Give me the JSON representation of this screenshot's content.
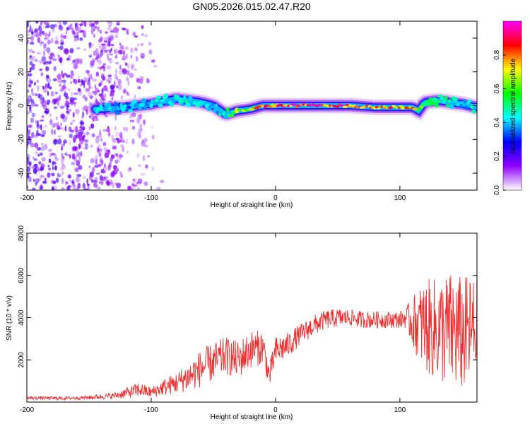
{
  "chart_data": [
    {
      "type": "heatmap",
      "title": "GN05.2026.015.02.47.R20",
      "xlabel": "Height of straight line (km)",
      "ylabel": "Frequency (Hz)",
      "xlim": [
        -200,
        162
      ],
      "ylim": [
        -50,
        50
      ],
      "xticks": [
        "-200",
        "-100",
        "0",
        "100"
      ],
      "yticks": [
        "40",
        "20",
        "0",
        "-20",
        "-40"
      ],
      "colorbar": {
        "label": "Normalized spectral amplitude",
        "range": [
          0,
          1
        ],
        "ticks": [
          "0.0",
          "0.2",
          "0.4",
          "0.6",
          "0.8"
        ],
        "colors": [
          "#ffffff",
          "#8f00ff",
          "#0000ff",
          "#00ffff",
          "#00ff00",
          "#ffff00",
          "#ff0000",
          "#ff00ff"
        ]
      },
      "ridge": {
        "x": [
          -140,
          -120,
          -100,
          -80,
          -70,
          -60,
          -50,
          -40,
          -35,
          -30,
          -20,
          -10,
          0,
          20,
          40,
          60,
          80,
          100,
          110,
          115,
          120,
          130,
          140,
          150,
          162
        ],
        "freq": [
          -2,
          -1,
          1,
          4,
          3,
          2,
          0,
          -5,
          -4,
          -3,
          -2,
          0,
          0,
          0,
          0,
          0,
          -1,
          -1,
          -1,
          -3,
          2,
          3,
          2,
          1,
          -1
        ],
        "amplitude": [
          0.45,
          0.4,
          0.45,
          0.45,
          0.5,
          0.45,
          0.45,
          0.5,
          0.6,
          0.7,
          0.75,
          0.85,
          0.9,
          0.95,
          0.95,
          0.9,
          0.85,
          0.85,
          0.8,
          0.7,
          0.6,
          0.5,
          0.5,
          0.45,
          0.45
        ]
      },
      "noise_region": {
        "x_start": -200,
        "x_end": -90,
        "amplitude": 0.1
      }
    },
    {
      "type": "line",
      "xlabel": "Height of straight line (km)",
      "ylabel": "SNR (10 * v/v)",
      "xlim": [
        -200,
        162
      ],
      "ylim": [
        0,
        8000
      ],
      "xticks": [
        "-200",
        "-100",
        "0",
        "100"
      ],
      "yticks": [
        "8000",
        "6000",
        "4000",
        "2000"
      ],
      "color": "#f03030",
      "series": [
        {
          "name": "SNR",
          "x": [
            -200,
            -170,
            -150,
            -130,
            -115,
            -110,
            -100,
            -90,
            -80,
            -70,
            -60,
            -50,
            -40,
            -30,
            -20,
            -10,
            -5,
            0,
            10,
            20,
            30,
            40,
            50,
            60,
            70,
            80,
            90,
            100,
            105,
            110,
            120,
            130,
            140,
            150,
            162
          ],
          "mean": [
            200,
            180,
            220,
            300,
            500,
            600,
            450,
            700,
            900,
            1200,
            1600,
            1900,
            2200,
            2000,
            2500,
            2600,
            1200,
            2400,
            2700,
            3200,
            3600,
            3900,
            4000,
            4000,
            3900,
            3900,
            3900,
            3900,
            4000,
            3800,
            3600,
            3400,
            3400,
            3200,
            3400
          ],
          "spread": [
            80,
            80,
            100,
            150,
            300,
            350,
            250,
            400,
            500,
            700,
            900,
            900,
            900,
            900,
            900,
            800,
            600,
            700,
            600,
            500,
            500,
            450,
            450,
            400,
            400,
            400,
            400,
            400,
            500,
            1200,
            2200,
            2500,
            2800,
            2800,
            2600
          ]
        }
      ]
    }
  ]
}
